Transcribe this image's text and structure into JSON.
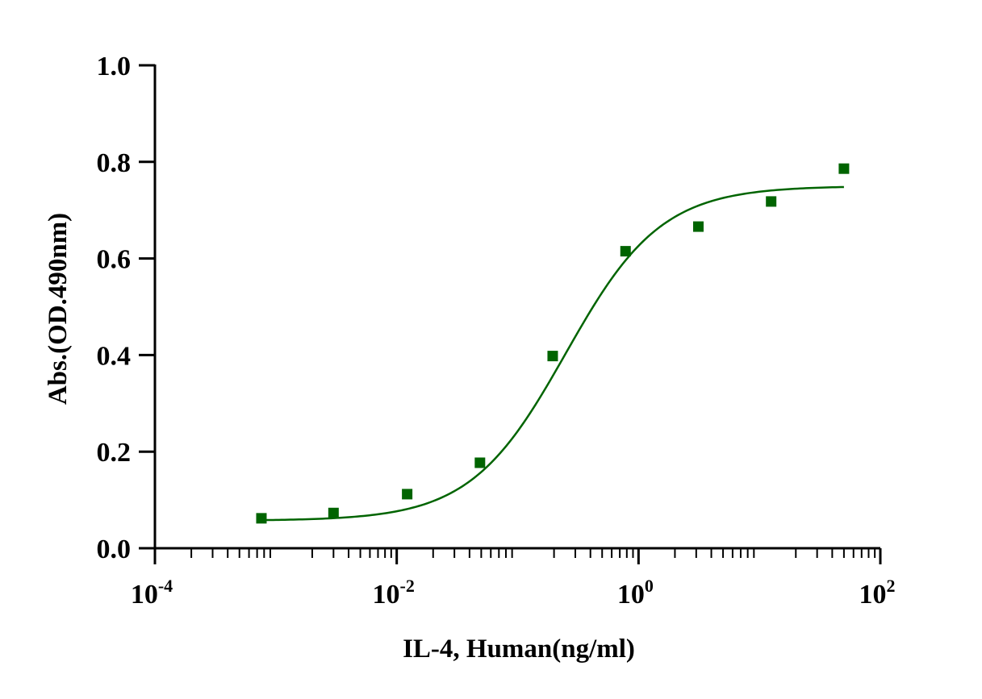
{
  "chart_data": {
    "type": "scatter",
    "title": "",
    "xlabel": "IL-4, Human(ng/ml)",
    "ylabel": "Abs.(OD.490nm)",
    "xscale": "log",
    "xlim": [
      0.0001,
      100
    ],
    "ylim": [
      0.0,
      1.0
    ],
    "yticks": [
      {
        "value": 0.0,
        "label": "0.0"
      },
      {
        "value": 0.2,
        "label": "0.2"
      },
      {
        "value": 0.4,
        "label": "0.4"
      },
      {
        "value": 0.6,
        "label": "0.6"
      },
      {
        "value": 0.8,
        "label": "0.8"
      },
      {
        "value": 1.0,
        "label": "1.0"
      }
    ],
    "xticks": [
      {
        "value": 0.0001,
        "base": "10",
        "exp": "-4"
      },
      {
        "value": 0.01,
        "base": "10",
        "exp": "-2"
      },
      {
        "value": 1,
        "base": "10",
        "exp": "0"
      },
      {
        "value": 100,
        "base": "10",
        "exp": "2"
      }
    ],
    "grid": false,
    "legend": "none",
    "color": "#006400",
    "series": [
      {
        "name": "IL-4, Human",
        "marker": "square",
        "x": [
          0.00076,
          0.003,
          0.0122,
          0.0488,
          0.195,
          0.781,
          3.125,
          12.5,
          50
        ],
        "y": [
          0.062,
          0.073,
          0.112,
          0.177,
          0.398,
          0.615,
          0.666,
          0.718,
          0.786
        ]
      }
    ],
    "fit": {
      "type": "4PL",
      "bottom": 0.057,
      "top": 0.75,
      "ec50": 0.25,
      "hill": 1.1,
      "x_range": [
        0.00076,
        50
      ]
    }
  }
}
